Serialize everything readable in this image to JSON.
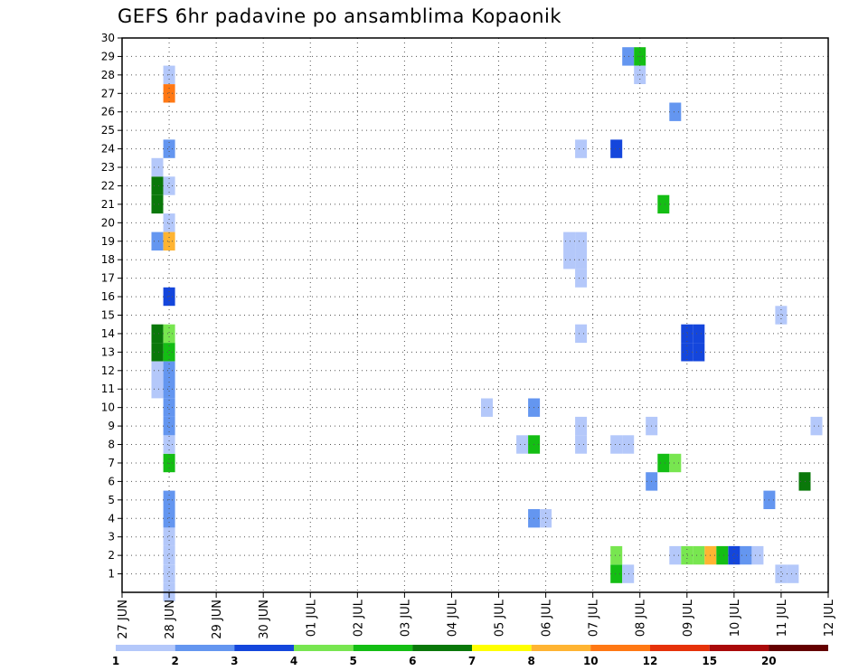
{
  "chart_data": {
    "type": "heatmap",
    "title": "GEFS 6hr padavine po ansamblima Kopaonik",
    "x_unit": "6-hour step (day index from 27 JUN)",
    "x_tick_labels": [
      "27 JUN",
      "28 JUN",
      "29 JUN",
      "30 JUN",
      "01 JUL",
      "02 JUL",
      "03 JUL",
      "04 JUL",
      "05 JUL",
      "06 JUL",
      "07 JUL",
      "08 JUL",
      "09 JUL",
      "10 JUL",
      "11 JUL",
      "12 JUL"
    ],
    "xlim": [
      0,
      15
    ],
    "y_tick_labels": [
      "1",
      "2",
      "3",
      "4",
      "5",
      "6",
      "7",
      "8",
      "9",
      "10",
      "11",
      "12",
      "13",
      "14",
      "15",
      "16",
      "17",
      "18",
      "19",
      "20",
      "21",
      "22",
      "23",
      "24",
      "25",
      "26",
      "27",
      "28",
      "29",
      "30"
    ],
    "ylim": [
      0,
      30
    ],
    "grid": true,
    "colorbar": {
      "labels": [
        "1",
        "2",
        "3",
        "4",
        "5",
        "6",
        "7",
        "8",
        "10",
        "12",
        "15",
        "20"
      ],
      "colors": [
        "#b4c8fa",
        "#6496f0",
        "#1446dc",
        "#78e650",
        "#14be14",
        "#0a780a",
        "#ffff00",
        "#ffb432",
        "#ff7814",
        "#e6320a",
        "#aa0a0a",
        "#640000"
      ]
    },
    "cells": [
      {
        "x": 1.0,
        "m": 0,
        "v": 1.5
      },
      {
        "x": 1.0,
        "m": 1,
        "v": 1.5
      },
      {
        "x": 1.0,
        "m": 2,
        "v": 1.5
      },
      {
        "x": 1.0,
        "m": 3,
        "v": 1.5
      },
      {
        "x": 1.0,
        "m": 4,
        "v": 2.5
      },
      {
        "x": 1.0,
        "m": 5,
        "v": 2.5
      },
      {
        "x": 1.0,
        "m": 7,
        "v": 5.5
      },
      {
        "x": 1.0,
        "m": 8,
        "v": 1.5
      },
      {
        "x": 1.0,
        "m": 9,
        "v": 2.5
      },
      {
        "x": 1.0,
        "m": 10,
        "v": 2.5
      },
      {
        "x": 1.0,
        "m": 11,
        "v": 2.5
      },
      {
        "x": 1.0,
        "m": 12,
        "v": 2.5
      },
      {
        "x": 1.0,
        "m": 13,
        "v": 5.5
      },
      {
        "x": 1.0,
        "m": 14,
        "v": 4.5
      },
      {
        "x": 1.0,
        "m": 16,
        "v": 3.5
      },
      {
        "x": 1.0,
        "m": 19,
        "v": 9
      },
      {
        "x": 1.0,
        "m": 20,
        "v": 1.5
      },
      {
        "x": 1.0,
        "m": 22,
        "v": 1.5
      },
      {
        "x": 1.0,
        "m": 24,
        "v": 2.5
      },
      {
        "x": 1.0,
        "m": 27,
        "v": 11
      },
      {
        "x": 1.0,
        "m": 28,
        "v": 1.5
      },
      {
        "x": 0.75,
        "m": 11,
        "v": 1.5
      },
      {
        "x": 0.75,
        "m": 12,
        "v": 1.5
      },
      {
        "x": 0.75,
        "m": 13,
        "v": 6.5
      },
      {
        "x": 0.75,
        "m": 14,
        "v": 6.5
      },
      {
        "x": 0.75,
        "m": 19,
        "v": 2.5
      },
      {
        "x": 0.75,
        "m": 21,
        "v": 6.5
      },
      {
        "x": 0.75,
        "m": 22,
        "v": 6.5
      },
      {
        "x": 0.75,
        "m": 23,
        "v": 1.5
      },
      {
        "x": 7.75,
        "m": 10,
        "v": 1.5
      },
      {
        "x": 8.5,
        "m": 8,
        "v": 1.5
      },
      {
        "x": 8.75,
        "m": 8,
        "v": 5.5
      },
      {
        "x": 8.75,
        "m": 10,
        "v": 2.5
      },
      {
        "x": 8.75,
        "m": 4,
        "v": 2.5
      },
      {
        "x": 9.0,
        "m": 4,
        "v": 1.5
      },
      {
        "x": 9.5,
        "m": 18,
        "v": 1.5
      },
      {
        "x": 9.5,
        "m": 19,
        "v": 1.5
      },
      {
        "x": 9.75,
        "m": 17,
        "v": 1.5
      },
      {
        "x": 9.75,
        "m": 18,
        "v": 1.5
      },
      {
        "x": 9.75,
        "m": 19,
        "v": 1.5
      },
      {
        "x": 9.75,
        "m": 14,
        "v": 1.5
      },
      {
        "x": 9.75,
        "m": 24,
        "v": 1.5
      },
      {
        "x": 9.75,
        "m": 9,
        "v": 1.5
      },
      {
        "x": 9.75,
        "m": 8,
        "v": 1.5
      },
      {
        "x": 10.5,
        "m": 24,
        "v": 3.5
      },
      {
        "x": 10.5,
        "m": 8,
        "v": 1.5
      },
      {
        "x": 10.75,
        "m": 8,
        "v": 1.5
      },
      {
        "x": 10.5,
        "m": 2,
        "v": 4.5
      },
      {
        "x": 10.5,
        "m": 1,
        "v": 5.5
      },
      {
        "x": 10.75,
        "m": 1,
        "v": 1.5
      },
      {
        "x": 10.75,
        "m": 29,
        "v": 2.5
      },
      {
        "x": 11.0,
        "m": 29,
        "v": 5.5
      },
      {
        "x": 11.0,
        "m": 28,
        "v": 1.5
      },
      {
        "x": 11.25,
        "m": 9,
        "v": 1.5
      },
      {
        "x": 11.25,
        "m": 6,
        "v": 2.5
      },
      {
        "x": 11.5,
        "m": 7,
        "v": 5.5
      },
      {
        "x": 11.75,
        "m": 7,
        "v": 4.5
      },
      {
        "x": 11.5,
        "m": 21,
        "v": 5.5
      },
      {
        "x": 11.75,
        "m": 26,
        "v": 2.5
      },
      {
        "x": 12.0,
        "m": 13,
        "v": 3.5
      },
      {
        "x": 12.0,
        "m": 14,
        "v": 3.5
      },
      {
        "x": 12.25,
        "m": 13,
        "v": 3.5
      },
      {
        "x": 12.25,
        "m": 14,
        "v": 3.5
      },
      {
        "x": 11.75,
        "m": 2,
        "v": 1.5
      },
      {
        "x": 12.0,
        "m": 2,
        "v": 4.5
      },
      {
        "x": 12.25,
        "m": 2,
        "v": 4.5
      },
      {
        "x": 12.5,
        "m": 2,
        "v": 9
      },
      {
        "x": 12.75,
        "m": 2,
        "v": 5.5
      },
      {
        "x": 13.0,
        "m": 2,
        "v": 3.5
      },
      {
        "x": 13.25,
        "m": 2,
        "v": 2.5
      },
      {
        "x": 13.5,
        "m": 2,
        "v": 1.5
      },
      {
        "x": 13.75,
        "m": 5,
        "v": 2.5
      },
      {
        "x": 14.0,
        "m": 15,
        "v": 1.5
      },
      {
        "x": 14.0,
        "m": 1,
        "v": 1.5
      },
      {
        "x": 14.25,
        "m": 1,
        "v": 1.5
      },
      {
        "x": 14.5,
        "m": 6,
        "v": 6.5
      },
      {
        "x": 14.75,
        "m": 9,
        "v": 1.5
      }
    ]
  }
}
